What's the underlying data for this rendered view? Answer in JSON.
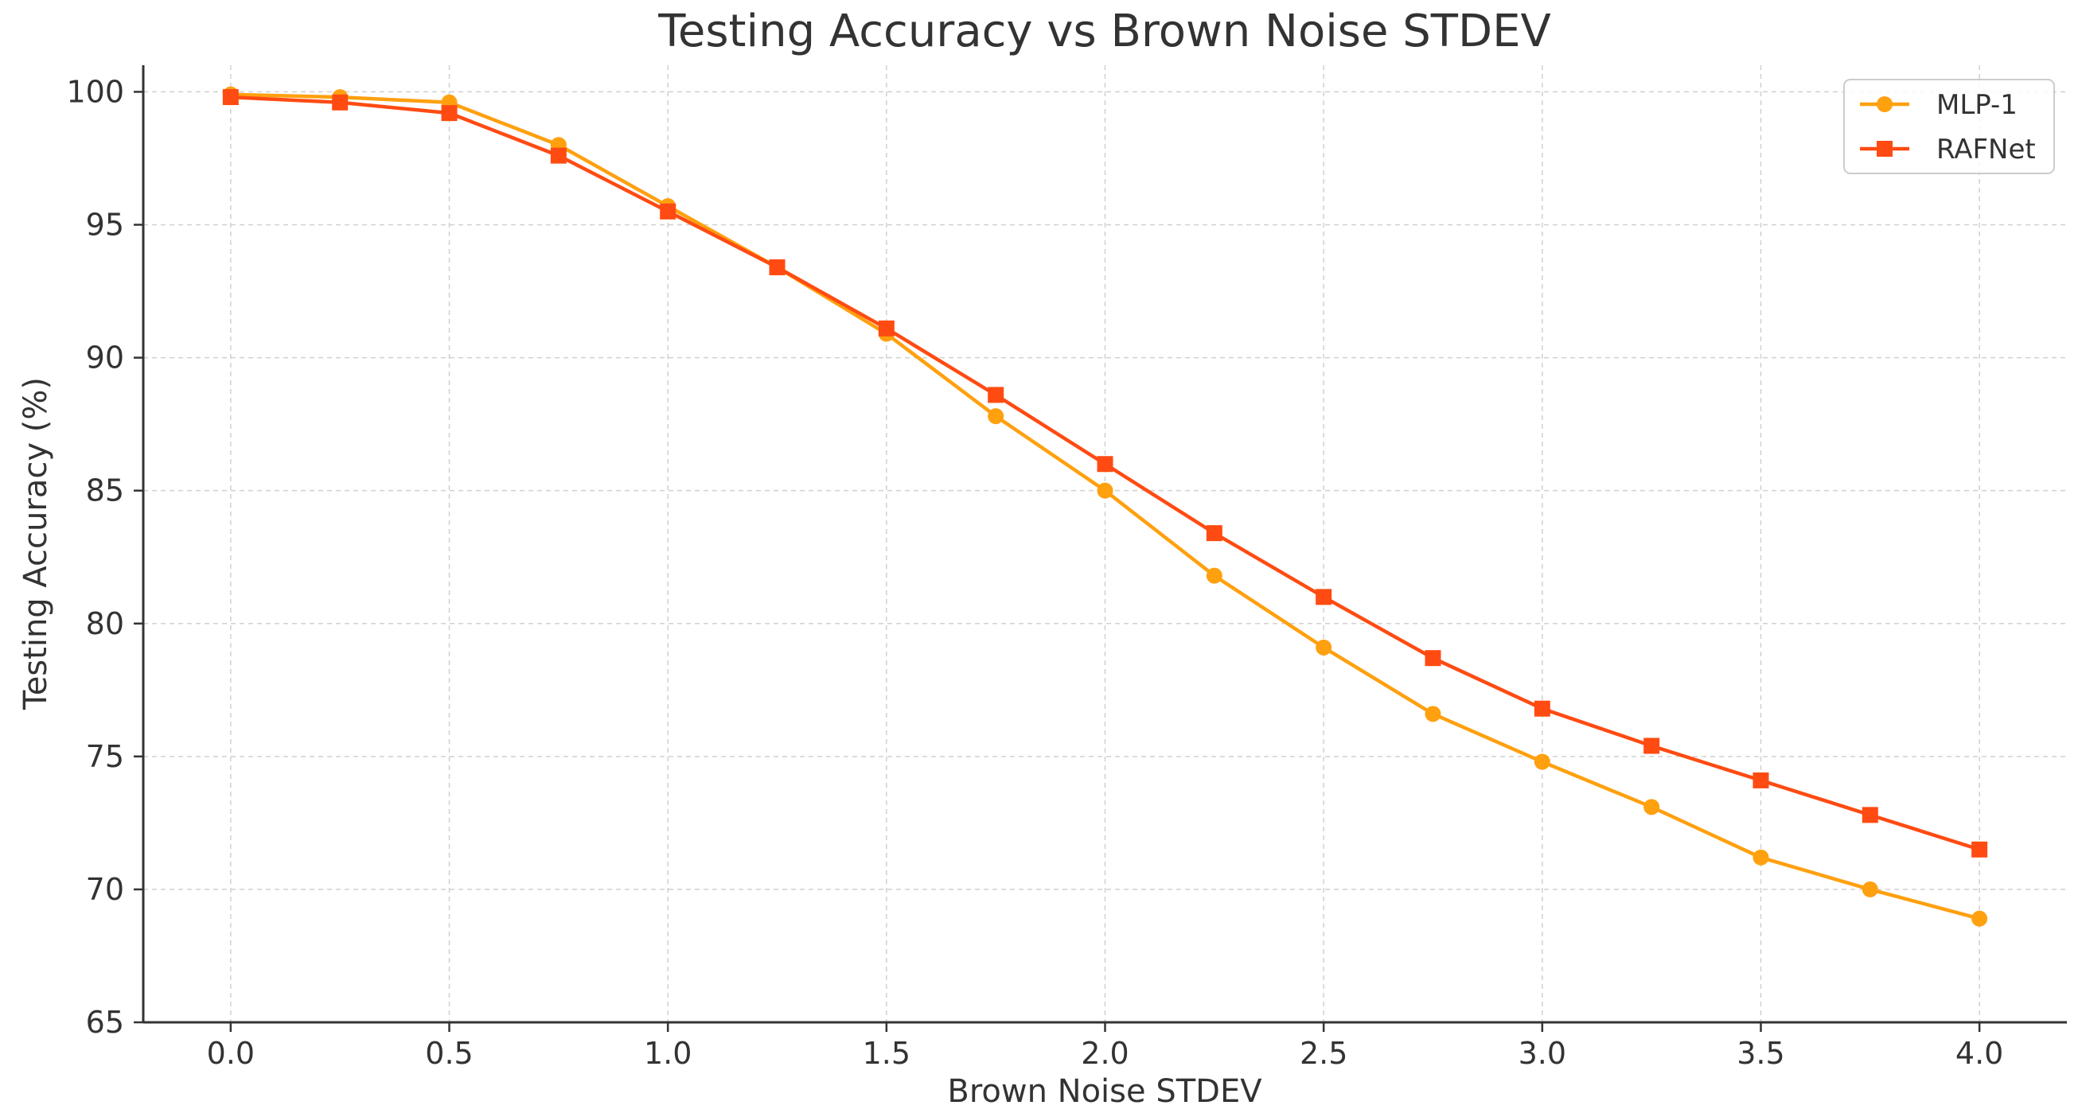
{
  "chart_data": {
    "type": "line",
    "title": "Testing Accuracy vs Brown Noise STDEV",
    "xlabel": "Brown Noise STDEV",
    "ylabel": "Testing Accuracy (%)",
    "xlim": [
      -0.2,
      4.2
    ],
    "ylim": [
      65,
      101
    ],
    "xticks": [
      0.0,
      0.5,
      1.0,
      1.5,
      2.0,
      2.5,
      3.0,
      3.5,
      4.0
    ],
    "xtick_labels": [
      "0.0",
      "0.5",
      "1.0",
      "1.5",
      "2.0",
      "2.5",
      "3.0",
      "3.5",
      "4.0"
    ],
    "yticks": [
      65,
      70,
      75,
      80,
      85,
      90,
      95,
      100
    ],
    "ytick_labels": [
      "65",
      "70",
      "75",
      "80",
      "85",
      "90",
      "95",
      "100"
    ],
    "grid": true,
    "legend_position": "top-right",
    "x": [
      0.0,
      0.25,
      0.5,
      0.75,
      1.0,
      1.25,
      1.5,
      1.75,
      2.0,
      2.25,
      2.5,
      2.75,
      3.0,
      3.25,
      3.5,
      3.75,
      4.0
    ],
    "series": [
      {
        "name": "MLP-1",
        "color": "#ffa00f",
        "marker": "circle",
        "values": [
          99.9,
          99.8,
          99.6,
          98.0,
          95.7,
          93.4,
          90.9,
          87.8,
          85.0,
          81.8,
          79.1,
          76.6,
          74.8,
          73.1,
          71.2,
          70.0,
          68.9
        ]
      },
      {
        "name": "RAFNet",
        "color": "#ff4b12",
        "marker": "square",
        "values": [
          99.8,
          99.6,
          99.2,
          97.6,
          95.5,
          93.4,
          91.1,
          88.6,
          86.0,
          83.4,
          81.0,
          78.7,
          76.8,
          75.4,
          74.1,
          72.8,
          71.5
        ]
      }
    ]
  }
}
